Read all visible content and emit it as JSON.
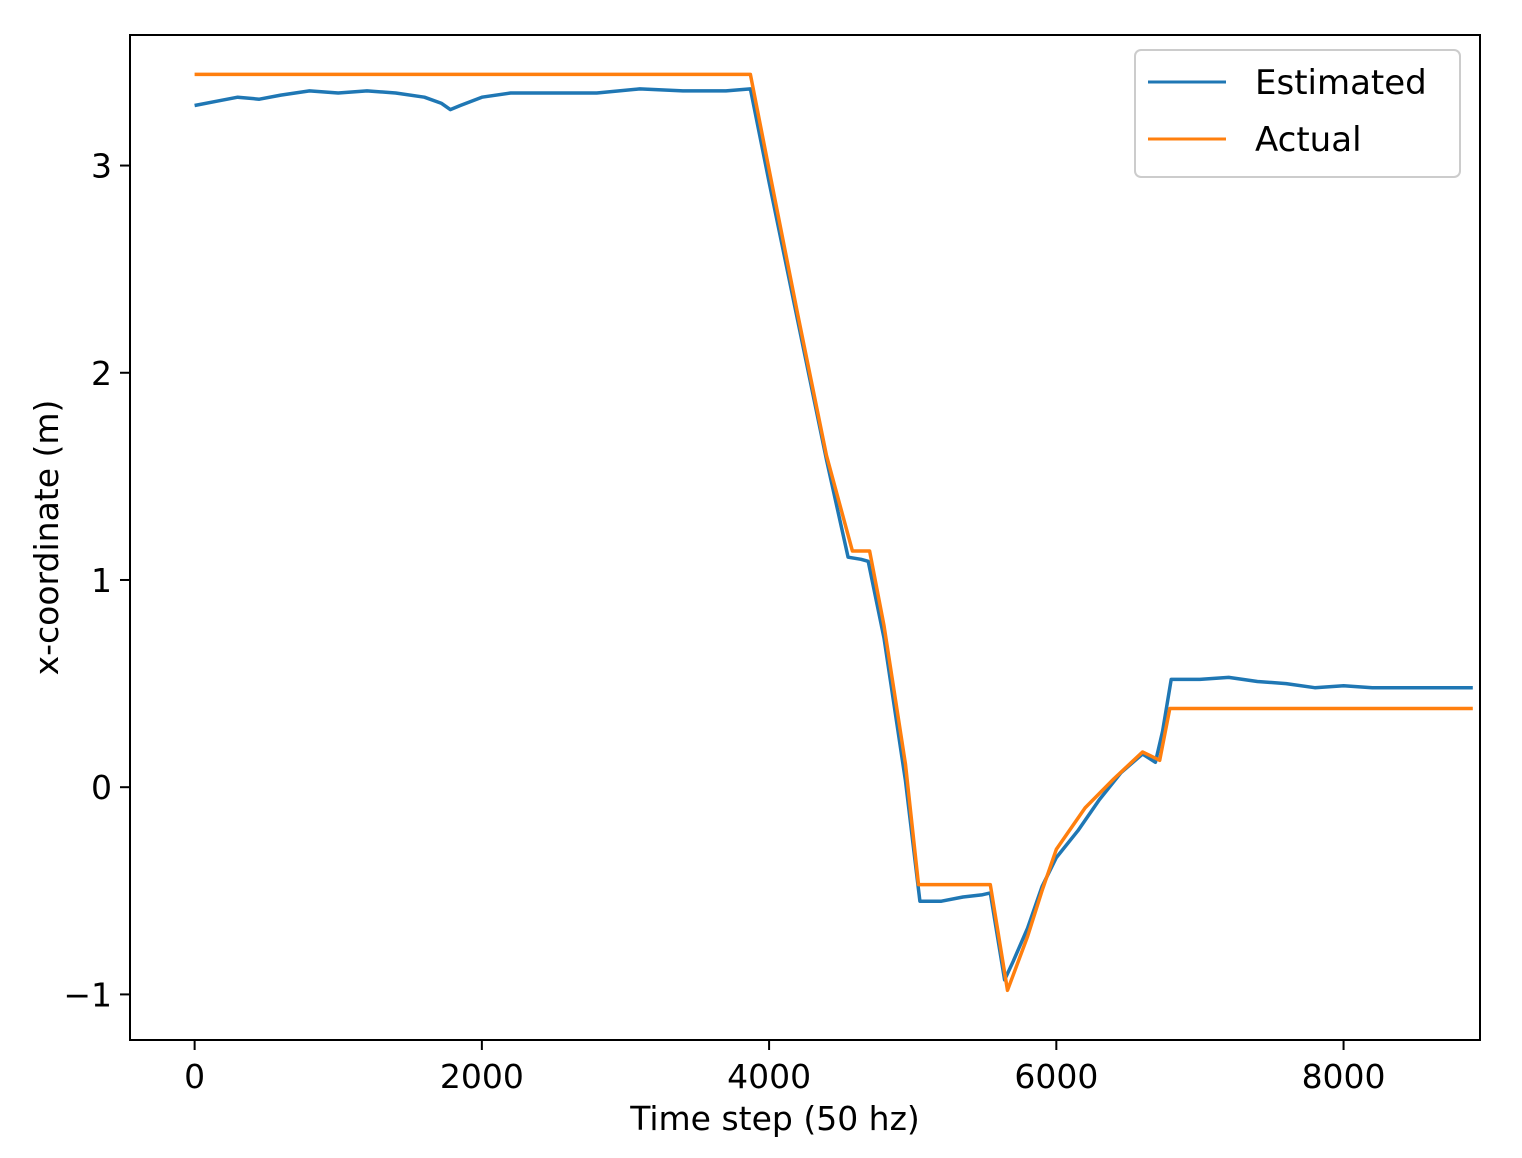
{
  "chart_data": {
    "type": "line",
    "title": "",
    "xlabel": "Time step (50 hz)",
    "ylabel": "x-coordinate (m)",
    "xlim": [
      -450,
      8950
    ],
    "ylim": [
      -1.22,
      3.63
    ],
    "xticks": [
      0,
      2000,
      4000,
      6000,
      8000
    ],
    "xtick_labels": [
      "0",
      "2000",
      "4000",
      "6000",
      "8000"
    ],
    "yticks": [
      -1,
      0,
      1,
      2,
      3
    ],
    "ytick_labels": [
      "−1",
      "0",
      "1",
      "2",
      "3"
    ],
    "grid": false,
    "legend_position": "top-right",
    "series": [
      {
        "name": "Estimated",
        "color": "#1f77b4",
        "points": [
          [
            0,
            3.29
          ],
          [
            150,
            3.31
          ],
          [
            300,
            3.33
          ],
          [
            450,
            3.32
          ],
          [
            600,
            3.34
          ],
          [
            800,
            3.36
          ],
          [
            1000,
            3.35
          ],
          [
            1200,
            3.36
          ],
          [
            1400,
            3.35
          ],
          [
            1600,
            3.33
          ],
          [
            1720,
            3.3
          ],
          [
            1780,
            3.27
          ],
          [
            1850,
            3.29
          ],
          [
            2000,
            3.33
          ],
          [
            2200,
            3.35
          ],
          [
            2500,
            3.35
          ],
          [
            2800,
            3.35
          ],
          [
            3100,
            3.37
          ],
          [
            3400,
            3.36
          ],
          [
            3700,
            3.36
          ],
          [
            3870,
            3.37
          ],
          [
            4000,
            2.92
          ],
          [
            4200,
            2.25
          ],
          [
            4400,
            1.58
          ],
          [
            4550,
            1.11
          ],
          [
            4640,
            1.1
          ],
          [
            4690,
            1.09
          ],
          [
            4800,
            0.72
          ],
          [
            4950,
            0.03
          ],
          [
            5050,
            -0.55
          ],
          [
            5200,
            -0.55
          ],
          [
            5350,
            -0.53
          ],
          [
            5480,
            -0.52
          ],
          [
            5540,
            -0.51
          ],
          [
            5640,
            -0.93
          ],
          [
            5700,
            -0.84
          ],
          [
            5800,
            -0.68
          ],
          [
            5900,
            -0.48
          ],
          [
            6000,
            -0.34
          ],
          [
            6150,
            -0.21
          ],
          [
            6300,
            -0.06
          ],
          [
            6450,
            0.07
          ],
          [
            6600,
            0.16
          ],
          [
            6690,
            0.12
          ],
          [
            6740,
            0.27
          ],
          [
            6800,
            0.52
          ],
          [
            7000,
            0.52
          ],
          [
            7200,
            0.53
          ],
          [
            7400,
            0.51
          ],
          [
            7600,
            0.5
          ],
          [
            7800,
            0.48
          ],
          [
            8000,
            0.49
          ],
          [
            8200,
            0.48
          ],
          [
            8400,
            0.48
          ],
          [
            8600,
            0.48
          ],
          [
            8900,
            0.48
          ]
        ]
      },
      {
        "name": "Actual",
        "color": "#ff7f0e",
        "points": [
          [
            0,
            3.44
          ],
          [
            3870,
            3.44
          ],
          [
            4000,
            2.98
          ],
          [
            4200,
            2.28
          ],
          [
            4400,
            1.6
          ],
          [
            4580,
            1.14
          ],
          [
            4700,
            1.14
          ],
          [
            4800,
            0.78
          ],
          [
            4950,
            0.11
          ],
          [
            5040,
            -0.47
          ],
          [
            5540,
            -0.47
          ],
          [
            5660,
            -0.98
          ],
          [
            5800,
            -0.72
          ],
          [
            5900,
            -0.5
          ],
          [
            6000,
            -0.3
          ],
          [
            6200,
            -0.1
          ],
          [
            6400,
            0.04
          ],
          [
            6600,
            0.17
          ],
          [
            6660,
            0.15
          ],
          [
            6720,
            0.13
          ],
          [
            6790,
            0.38
          ],
          [
            8900,
            0.38
          ]
        ]
      }
    ]
  }
}
